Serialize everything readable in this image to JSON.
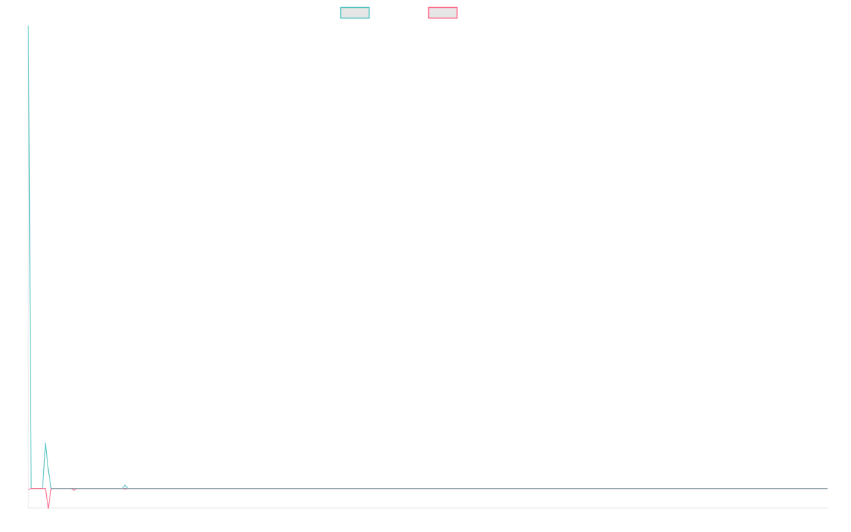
{
  "chart_data": {
    "type": "line",
    "title": "",
    "xlabel": "",
    "ylabel": "",
    "xlim": [
      0,
      281
    ],
    "ylim": [
      -4.2,
      100
    ],
    "grid": false,
    "legend": "top-center",
    "series": [
      {
        "color": "#4bc0c0",
        "points": [
          [
            0,
            100
          ],
          [
            1,
            0
          ],
          [
            5,
            0
          ],
          [
            6,
            9.8
          ],
          [
            7,
            4
          ],
          [
            8,
            0
          ],
          [
            33,
            0
          ],
          [
            34,
            0.7
          ],
          [
            35,
            0
          ],
          [
            281,
            0
          ]
        ]
      },
      {
        "color": "#ff6384",
        "points": [
          [
            0,
            -0.3
          ],
          [
            1,
            0
          ],
          [
            6,
            0
          ],
          [
            7,
            -4.3
          ],
          [
            8,
            0
          ],
          [
            15,
            0
          ],
          [
            16,
            -0.4
          ],
          [
            17,
            0
          ],
          [
            33,
            0
          ],
          [
            34,
            -0.2
          ],
          [
            35,
            0
          ],
          [
            281,
            0
          ]
        ]
      }
    ]
  }
}
